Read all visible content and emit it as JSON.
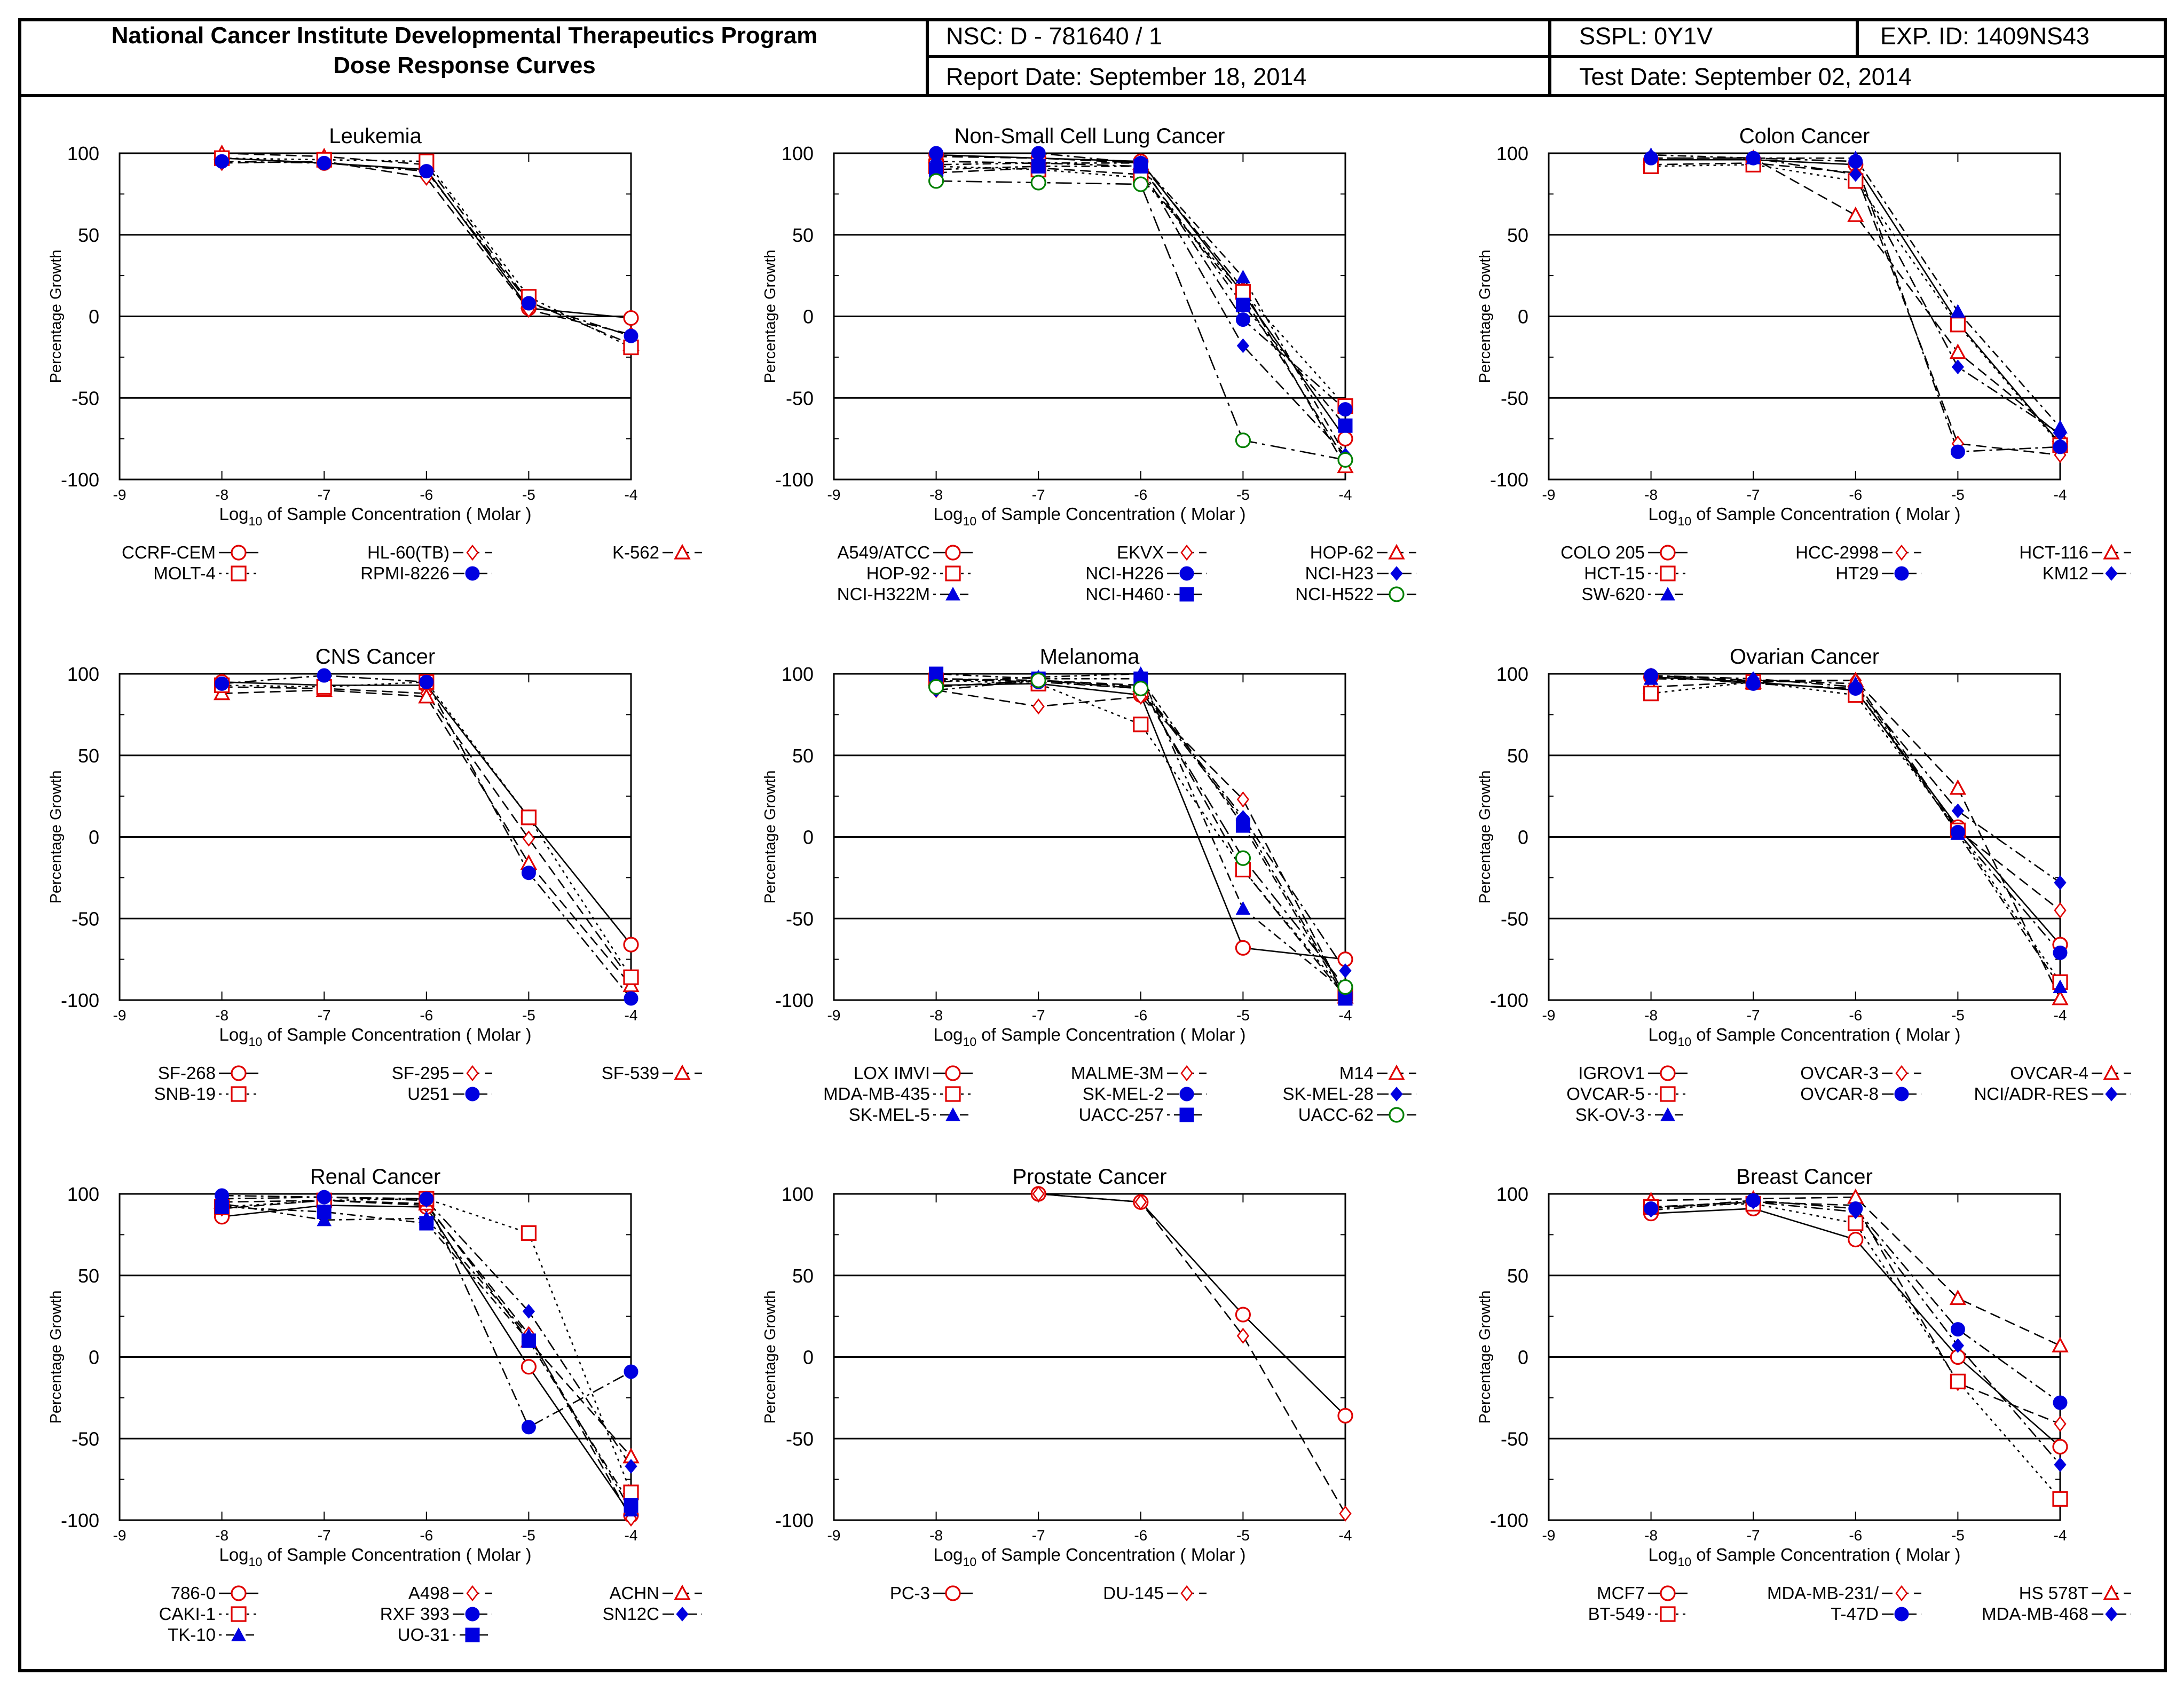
{
  "header": {
    "title_line1": "National Cancer Institute Developmental Therapeutics Program",
    "title_line2": "Dose Response Curves",
    "nsc": "NSC: D - 781640 / 1",
    "sspl": "SSPL: 0Y1V",
    "exp_id": "EXP. ID: 1409NS43",
    "report_date": "Report Date: September 18, 2014",
    "test_date": "Test Date: September 02, 2014"
  },
  "colors": {
    "open_marker": "#e00000",
    "filled_marker": "#0000e0",
    "open_diamond": "#e00000",
    "circle_green": "#008000",
    "axis": "#000000"
  },
  "chart_data": [
    {
      "type": "line",
      "title": "Leukemia",
      "xlabel": "Log10 of Sample Concentration ( Molar )",
      "ylabel": "Percentage Growth",
      "x": [
        -8,
        -7,
        -6,
        -5,
        -4
      ],
      "xlim": [
        -9,
        -4
      ],
      "ylim": [
        -100,
        100
      ],
      "xticks": [
        -9,
        -8,
        -7,
        -6,
        -5,
        -4
      ],
      "yticks": [
        100,
        50,
        0,
        -50,
        -100
      ],
      "series": [
        {
          "name": "CCRF-CEM",
          "marker": "circle-open",
          "dash": "solid",
          "values": [
            97,
            94,
            90,
            5,
            -1
          ]
        },
        {
          "name": "HL-60(TB)",
          "marker": "diamond-open",
          "dash": "dashed",
          "values": [
            94,
            95,
            85,
            4,
            -11
          ]
        },
        {
          "name": "K-562",
          "marker": "triangle-open",
          "dash": "dashed",
          "values": [
            100,
            98,
            93,
            9,
            -17
          ]
        },
        {
          "name": "MOLT-4",
          "marker": "square-open",
          "dash": "dotted",
          "values": [
            97,
            96,
            95,
            12,
            -19
          ]
        },
        {
          "name": "RPMI-8226",
          "marker": "circle-filled",
          "dash": "dashdot",
          "values": [
            95,
            94,
            89,
            8,
            -12
          ]
        }
      ]
    },
    {
      "type": "line",
      "title": "Non-Small Cell Lung Cancer",
      "xlabel": "Log10 of Sample Concentration ( Molar )",
      "ylabel": "Percentage Growth",
      "x": [
        -8,
        -7,
        -6,
        -5,
        -4
      ],
      "xlim": [
        -9,
        -4
      ],
      "ylim": [
        -100,
        100
      ],
      "xticks": [
        -9,
        -8,
        -7,
        -6,
        -5,
        -4
      ],
      "yticks": [
        100,
        50,
        0,
        -50,
        -100
      ],
      "series": [
        {
          "name": "A549/ATCC",
          "marker": "circle-open",
          "dash": "solid",
          "values": [
            99,
            97,
            95,
            14,
            -75
          ]
        },
        {
          "name": "EKVX",
          "marker": "diamond-open",
          "dash": "dashed",
          "values": [
            88,
            91,
            87,
            12,
            -88
          ]
        },
        {
          "name": "HOP-62",
          "marker": "triangle-open",
          "dash": "dashed",
          "values": [
            98,
            97,
            94,
            17,
            -92
          ]
        },
        {
          "name": "HOP-92",
          "marker": "square-open",
          "dash": "dotted",
          "values": [
            92,
            90,
            85,
            15,
            -55
          ]
        },
        {
          "name": "NCI-H226",
          "marker": "circle-filled",
          "dash": "dashdot",
          "values": [
            100,
            100,
            94,
            -2,
            -57
          ]
        },
        {
          "name": "NCI-H23",
          "marker": "diamond-filled",
          "dash": "dashdot",
          "values": [
            95,
            94,
            92,
            -18,
            -85
          ]
        },
        {
          "name": "NCI-H322M",
          "marker": "triangle-filled",
          "dash": "dotdash",
          "values": [
            93,
            94,
            94,
            24,
            -85
          ]
        },
        {
          "name": "NCI-H460",
          "marker": "square-filled",
          "dash": "dotdash",
          "values": [
            90,
            92,
            92,
            7,
            -67
          ]
        },
        {
          "name": "NCI-H522",
          "marker": "circle-green",
          "dash": "longdash",
          "values": [
            83,
            82,
            81,
            -76,
            -88
          ]
        }
      ]
    },
    {
      "type": "line",
      "title": "Colon Cancer",
      "xlabel": "Log10 of Sample Concentration ( Molar )",
      "ylabel": "Percentage Growth",
      "x": [
        -8,
        -7,
        -6,
        -5,
        -4
      ],
      "xlim": [
        -9,
        -4
      ],
      "ylim": [
        -100,
        100
      ],
      "xticks": [
        -9,
        -8,
        -7,
        -6,
        -5,
        -4
      ],
      "yticks": [
        100,
        50,
        0,
        -50,
        -100
      ],
      "series": [
        {
          "name": "COLO 205",
          "marker": "circle-open",
          "dash": "solid",
          "values": [
            96,
            96,
            93,
            -4,
            -78
          ]
        },
        {
          "name": "HCC-2998",
          "marker": "diamond-open",
          "dash": "dashed",
          "values": [
            93,
            94,
            88,
            -78,
            -85
          ]
        },
        {
          "name": "HCT-116",
          "marker": "triangle-open",
          "dash": "dashed",
          "values": [
            97,
            97,
            62,
            -22,
            -73
          ]
        },
        {
          "name": "HCT-15",
          "marker": "square-open",
          "dash": "dotted",
          "values": [
            92,
            93,
            83,
            -5,
            -79
          ]
        },
        {
          "name": "HT29",
          "marker": "circle-filled",
          "dash": "dashdot",
          "values": [
            97,
            97,
            95,
            -83,
            -80
          ]
        },
        {
          "name": "KM12",
          "marker": "diamond-filled",
          "dash": "dashdot",
          "values": [
            97,
            97,
            87,
            -31,
            -72
          ]
        },
        {
          "name": "SW-620",
          "marker": "triangle-filled",
          "dash": "dotdash",
          "values": [
            99,
            97,
            97,
            3,
            -68
          ]
        }
      ]
    },
    {
      "type": "line",
      "title": "CNS Cancer",
      "xlabel": "Log10 of Sample Concentration ( Molar )",
      "ylabel": "Percentage Growth",
      "x": [
        -8,
        -7,
        -6,
        -5,
        -4
      ],
      "xlim": [
        -9,
        -4
      ],
      "ylim": [
        -100,
        100
      ],
      "xticks": [
        -9,
        -8,
        -7,
        -6,
        -5,
        -4
      ],
      "yticks": [
        100,
        50,
        0,
        -50,
        -100
      ],
      "series": [
        {
          "name": "SF-268",
          "marker": "circle-open",
          "dash": "solid",
          "values": [
            95,
            93,
            93,
            12,
            -66
          ]
        },
        {
          "name": "SF-295",
          "marker": "diamond-open",
          "dash": "dashed",
          "values": [
            92,
            91,
            88,
            -1,
            -88
          ]
        },
        {
          "name": "SF-539",
          "marker": "triangle-open",
          "dash": "dashed",
          "values": [
            88,
            90,
            86,
            -16,
            -91
          ]
        },
        {
          "name": "SNB-19",
          "marker": "square-open",
          "dash": "dotted",
          "values": [
            93,
            92,
            95,
            12,
            -86
          ]
        },
        {
          "name": "U251",
          "marker": "circle-filled",
          "dash": "dashdot",
          "values": [
            94,
            99,
            95,
            -22,
            -99
          ]
        }
      ]
    },
    {
      "type": "line",
      "title": "Melanoma",
      "xlabel": "Log10 of Sample Concentration ( Molar )",
      "ylabel": "Percentage Growth",
      "x": [
        -8,
        -7,
        -6,
        -5,
        -4
      ],
      "xlim": [
        -9,
        -4
      ],
      "ylim": [
        -100,
        100
      ],
      "xticks": [
        -9,
        -8,
        -7,
        -6,
        -5,
        -4
      ],
      "yticks": [
        100,
        50,
        0,
        -50,
        -100
      ],
      "series": [
        {
          "name": "LOX IMVI",
          "marker": "circle-open",
          "dash": "solid",
          "values": [
            93,
            94,
            87,
            -68,
            -75
          ]
        },
        {
          "name": "MALME-3M",
          "marker": "diamond-open",
          "dash": "dashed",
          "values": [
            90,
            80,
            86,
            23,
            -98
          ]
        },
        {
          "name": "M14",
          "marker": "triangle-open",
          "dash": "dashed",
          "values": [
            97,
            96,
            93,
            -20,
            -98
          ]
        },
        {
          "name": "MDA-MB-435",
          "marker": "square-open",
          "dash": "dotted",
          "values": [
            96,
            94,
            69,
            -20,
            -96
          ]
        },
        {
          "name": "SK-MEL-2",
          "marker": "circle-filled",
          "dash": "dashdot",
          "values": [
            97,
            95,
            91,
            10,
            -97
          ]
        },
        {
          "name": "SK-MEL-28",
          "marker": "diamond-filled",
          "dash": "dashdot",
          "values": [
            90,
            96,
            92,
            12,
            -82
          ]
        },
        {
          "name": "SK-MEL-5",
          "marker": "triangle-filled",
          "dash": "dotdash",
          "values": [
            95,
            98,
            100,
            -44,
            -95
          ]
        },
        {
          "name": "UACC-257",
          "marker": "square-filled",
          "dash": "dotdash",
          "values": [
            100,
            97,
            97,
            7,
            -99
          ]
        },
        {
          "name": "UACC-62",
          "marker": "circle-green",
          "dash": "longdash",
          "values": [
            92,
            96,
            91,
            -13,
            -92
          ]
        }
      ]
    },
    {
      "type": "line",
      "title": "Ovarian Cancer",
      "xlabel": "Log10 of Sample Concentration ( Molar )",
      "ylabel": "Percentage Growth",
      "x": [
        -8,
        -7,
        -6,
        -5,
        -4
      ],
      "xlim": [
        -9,
        -4
      ],
      "ylim": [
        -100,
        100
      ],
      "xticks": [
        -9,
        -8,
        -7,
        -6,
        -5,
        -4
      ],
      "yticks": [
        100,
        50,
        0,
        -50,
        -100
      ],
      "series": [
        {
          "name": "IGROV1",
          "marker": "circle-open",
          "dash": "solid",
          "values": [
            98,
            95,
            90,
            6,
            -66
          ]
        },
        {
          "name": "OVCAR-3",
          "marker": "diamond-open",
          "dash": "dashed",
          "values": [
            99,
            96,
            96,
            4,
            -45
          ]
        },
        {
          "name": "OVCAR-4",
          "marker": "triangle-open",
          "dash": "dashed",
          "values": [
            92,
            95,
            96,
            30,
            -99
          ]
        },
        {
          "name": "OVCAR-5",
          "marker": "square-open",
          "dash": "dotted",
          "values": [
            88,
            95,
            87,
            4,
            -89
          ]
        },
        {
          "name": "OVCAR-8",
          "marker": "circle-filled",
          "dash": "dashdot",
          "values": [
            99,
            94,
            91,
            3,
            -71
          ]
        },
        {
          "name": "NCI/ADR-RES",
          "marker": "diamond-filled",
          "dash": "dashdot",
          "values": [
            99,
            97,
            92,
            16,
            -28
          ]
        },
        {
          "name": "SK-OV-3",
          "marker": "triangle-filled",
          "dash": "dotdash",
          "values": [
            97,
            96,
            94,
            2,
            -92
          ]
        }
      ]
    },
    {
      "type": "line",
      "title": "Renal Cancer",
      "xlabel": "Log10 of Sample Concentration ( Molar )",
      "ylabel": "Percentage Growth",
      "x": [
        -8,
        -7,
        -6,
        -5,
        -4
      ],
      "xlim": [
        -9,
        -4
      ],
      "ylim": [
        -100,
        100
      ],
      "xticks": [
        -9,
        -8,
        -7,
        -6,
        -5,
        -4
      ],
      "yticks": [
        100,
        50,
        0,
        -50,
        -100
      ],
      "series": [
        {
          "name": "786-0",
          "marker": "circle-open",
          "dash": "solid",
          "values": [
            86,
            93,
            92,
            -6,
            -97
          ]
        },
        {
          "name": "A498",
          "marker": "diamond-open",
          "dash": "dashed",
          "values": [
            91,
            96,
            93,
            14,
            -99
          ]
        },
        {
          "name": "ACHN",
          "marker": "triangle-open",
          "dash": "dashed",
          "values": [
            95,
            96,
            94,
            10,
            -61
          ]
        },
        {
          "name": "CAKI-1",
          "marker": "square-open",
          "dash": "dotted",
          "values": [
            92,
            96,
            97,
            76,
            -83
          ]
        },
        {
          "name": "RXF 393",
          "marker": "circle-filled",
          "dash": "dashdot",
          "values": [
            99,
            98,
            97,
            -43,
            -9
          ]
        },
        {
          "name": "SN12C",
          "marker": "diamond-filled",
          "dash": "dashdot",
          "values": [
            97,
            98,
            96,
            28,
            -67
          ]
        },
        {
          "name": "TK-10",
          "marker": "triangle-filled",
          "dash": "dotdash",
          "values": [
            94,
            84,
            85,
            13,
            -94
          ]
        },
        {
          "name": "UO-31",
          "marker": "square-filled",
          "dash": "dotdash",
          "values": [
            92,
            89,
            82,
            10,
            -91
          ]
        }
      ]
    },
    {
      "type": "line",
      "title": "Prostate Cancer",
      "xlabel": "Log10 of Sample Concentration ( Molar )",
      "ylabel": "Percentage Growth",
      "x": [
        -7,
        -6,
        -5,
        -4
      ],
      "xlim": [
        -9,
        -4
      ],
      "ylim": [
        -100,
        100
      ],
      "xticks": [
        -9,
        -8,
        -7,
        -6,
        -5,
        -4
      ],
      "yticks": [
        100,
        50,
        0,
        -50,
        -100
      ],
      "series": [
        {
          "name": "PC-3",
          "marker": "circle-open",
          "dash": "solid",
          "values": [
            100,
            95,
            26,
            -36
          ]
        },
        {
          "name": "DU-145",
          "marker": "diamond-open",
          "dash": "dashed",
          "values": [
            100,
            95,
            13,
            -96
          ]
        }
      ]
    },
    {
      "type": "line",
      "title": "Breast Cancer",
      "xlabel": "Log10 of Sample Concentration ( Molar )",
      "ylabel": "Percentage Growth",
      "x": [
        -8,
        -7,
        -6,
        -5,
        -4
      ],
      "xlim": [
        -9,
        -4
      ],
      "ylim": [
        -100,
        100
      ],
      "xticks": [
        -9,
        -8,
        -7,
        -6,
        -5,
        -4
      ],
      "yticks": [
        100,
        50,
        0,
        -50,
        -100
      ],
      "series": [
        {
          "name": "MCF7",
          "marker": "circle-open",
          "dash": "solid",
          "values": [
            88,
            91,
            72,
            0,
            -55
          ]
        },
        {
          "name": "MDA-MB-231/",
          "marker": "diamond-open",
          "dash": "dashed",
          "values": [
            92,
            95,
            93,
            -16,
            -41
          ]
        },
        {
          "name": "HS 578T",
          "marker": "triangle-open",
          "dash": "dashed",
          "values": [
            96,
            97,
            98,
            36,
            7
          ]
        },
        {
          "name": "BT-549",
          "marker": "square-open",
          "dash": "dotted",
          "values": [
            92,
            94,
            82,
            -15,
            -87
          ]
        },
        {
          "name": "T-47D",
          "marker": "circle-filled",
          "dash": "dashdot",
          "values": [
            91,
            96,
            91,
            17,
            -28
          ]
        },
        {
          "name": "MDA-MB-468",
          "marker": "diamond-filled",
          "dash": "dashdot",
          "values": [
            90,
            95,
            89,
            7,
            -66
          ]
        }
      ]
    }
  ]
}
